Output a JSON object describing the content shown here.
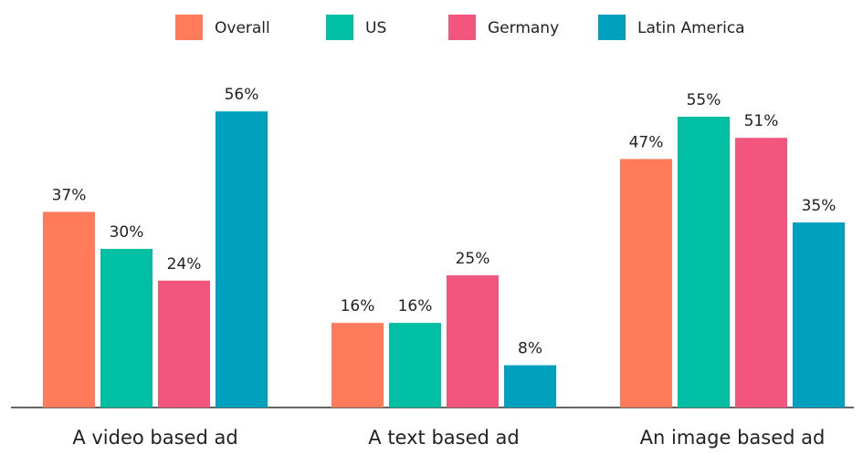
{
  "chart_data": {
    "type": "bar",
    "categories": [
      "A video based ad",
      "A text based ad",
      "An image based ad"
    ],
    "series": [
      {
        "name": "Overall",
        "color": "#ff7b5a",
        "values": [
          37,
          16,
          47
        ],
        "value_labels": [
          "37%",
          "16%",
          "47%"
        ]
      },
      {
        "name": "US",
        "color": "#00bfa5",
        "values": [
          30,
          16,
          55
        ],
        "value_labels": [
          "30%",
          "16%",
          "55%"
        ]
      },
      {
        "name": "Germany",
        "color": "#f2567e",
        "values": [
          24,
          25,
          51
        ],
        "value_labels": [
          "24%",
          "25%",
          "51%"
        ]
      },
      {
        "name": "Latin America",
        "color": "#00a0bf",
        "values": [
          56,
          8,
          35
        ],
        "value_labels": [
          "56%",
          "8%",
          "35%"
        ]
      }
    ],
    "legend": "top"
  }
}
